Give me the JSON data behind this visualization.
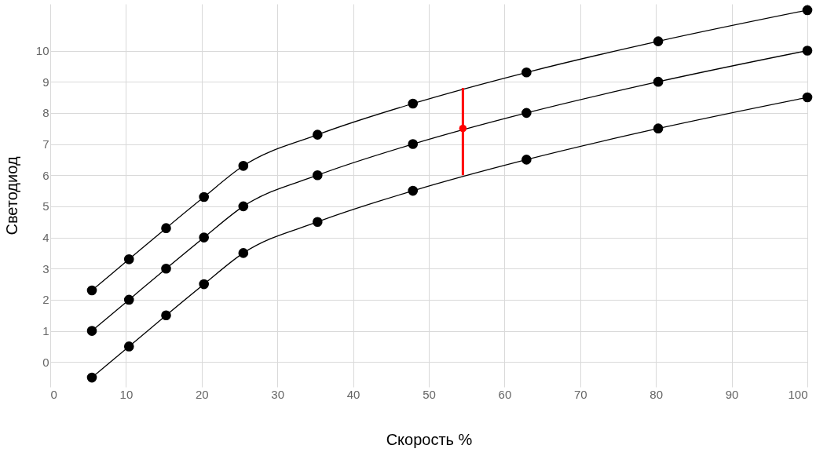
{
  "chart_data": {
    "type": "line",
    "xlabel": "Скорость %",
    "ylabel": "Светодиод",
    "xlim": [
      0,
      100
    ],
    "xticks": [
      0,
      10,
      20,
      30,
      40,
      50,
      60,
      70,
      80,
      90,
      100
    ],
    "ylim": [
      -0.8,
      11.5
    ],
    "yticks": [
      0,
      1,
      2,
      3,
      4,
      5,
      6,
      7,
      8,
      9,
      10
    ],
    "grid": true,
    "marker": "circle",
    "line_style": "solid",
    "x": [
      5.5,
      10.4,
      15.3,
      20.3,
      25.5,
      35.3,
      47.9,
      62.9,
      80.3,
      100
    ],
    "series": [
      {
        "color": "#000000",
        "values": [
          2.3,
          3.3,
          4.3,
          5.3,
          6.3,
          7.3,
          8.3,
          9.3,
          10.3,
          11.3
        ]
      },
      {
        "color": "#000000",
        "values": [
          1,
          2,
          3,
          4,
          5,
          6,
          7,
          8,
          9,
          10
        ]
      },
      {
        "color": "#000000",
        "values": [
          -0.5,
          0.5,
          1.5,
          2.5,
          3.5,
          4.5,
          5.5,
          6.5,
          7.5,
          8.5
        ]
      },
      {
        "type": "scatter",
        "color": "#ff0000",
        "x": [
          54.5
        ],
        "values": [
          7.5
        ],
        "errors": [
          [
            6.0,
            8.8
          ]
        ]
      }
    ]
  }
}
